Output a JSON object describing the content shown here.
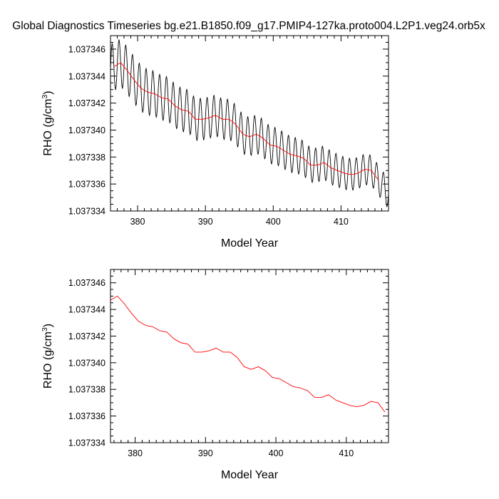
{
  "figure": {
    "title": "Global Diagnostics Timeseries bg.e21.B1850.f09_g17.PMIP4-127ka.proto004.L2P1.veg24.orb5x"
  },
  "chart_data": [
    {
      "type": "line",
      "title": "Global Diagnostics Timeseries bg.e21.B1850.f09_g17.PMIP4-127ka.proto004.L2P1.veg24.orb5x",
      "xlabel": "Model Year",
      "ylabel_main": "RHO (g/cm",
      "ylabel_sup": "3",
      "ylabel_close": ")",
      "xlim": [
        376,
        417
      ],
      "ylim": [
        1.037334,
        1.037347
      ],
      "xticks": [
        380,
        390,
        400,
        410
      ],
      "xtick_labels": [
        "380",
        "390",
        "400",
        "410"
      ],
      "yticks": [
        1.037334,
        1.037336,
        1.037338,
        1.03734,
        1.037342,
        1.037344,
        1.037346
      ],
      "ytick_labels": [
        "1.037334",
        "1.037336",
        "1.037338",
        "1.037340",
        "1.037342",
        "1.037344",
        "1.037346"
      ],
      "grid": false,
      "series": [
        {
          "role": "monthly",
          "color": "#000000",
          "generated": "seasonal cycle: annual mean plus 12-month oscillation",
          "start_year": 376.0,
          "months": 492,
          "amplitude": [
            1.8e-06,
            1.1e-06
          ],
          "phase": 1.5707963
        },
        {
          "role": "annual_mean",
          "color": "#ff0000",
          "x": [
            376.5,
            377.5,
            378.5,
            379.5,
            380.5,
            381.5,
            382.5,
            383.5,
            384.5,
            385.5,
            386.5,
            387.5,
            388.5,
            389.5,
            390.5,
            391.5,
            392.5,
            393.5,
            394.5,
            395.5,
            396.5,
            397.5,
            398.5,
            399.5,
            400.5,
            401.5,
            402.5,
            403.5,
            404.5,
            405.5,
            406.5,
            407.5,
            408.5,
            409.5,
            410.5,
            411.5,
            412.5,
            413.5,
            414.5,
            415.5
          ],
          "y": [
            1.0373447,
            1.037345,
            1.0373444,
            1.0373437,
            1.0373431,
            1.0373428,
            1.0373427,
            1.0373424,
            1.0373423,
            1.0373418,
            1.0373415,
            1.0373414,
            1.0373408,
            1.0373408,
            1.0373409,
            1.0373411,
            1.0373408,
            1.0373408,
            1.0373404,
            1.0373397,
            1.0373395,
            1.0373397,
            1.0373394,
            1.0373389,
            1.0373388,
            1.0373385,
            1.0373382,
            1.0373381,
            1.0373379,
            1.0373374,
            1.0373374,
            1.0373376,
            1.0373372,
            1.037337,
            1.0373368,
            1.0373367,
            1.0373368,
            1.0373371,
            1.037337,
            1.0373363
          ]
        }
      ]
    },
    {
      "type": "line",
      "title": "",
      "xlabel": "Model Year",
      "ylabel_main": "RHO (g/cm",
      "ylabel_sup": "3",
      "ylabel_close": ")",
      "xlim": [
        376.5,
        416
      ],
      "ylim": [
        1.037334,
        1.037347
      ],
      "xticks": [
        380,
        390,
        400,
        410
      ],
      "xtick_labels": [
        "380",
        "390",
        "400",
        "410"
      ],
      "yticks": [
        1.037334,
        1.037336,
        1.037338,
        1.03734,
        1.037342,
        1.037344,
        1.037346
      ],
      "ytick_labels": [
        "1.037334",
        "1.037336",
        "1.037338",
        "1.037340",
        "1.037342",
        "1.037344",
        "1.037346"
      ],
      "grid": false,
      "series": [
        {
          "role": "annual_mean",
          "color": "#ff0000",
          "x": [
            376.5,
            377.5,
            378.5,
            379.5,
            380.5,
            381.5,
            382.5,
            383.5,
            384.5,
            385.5,
            386.5,
            387.5,
            388.5,
            389.5,
            390.5,
            391.5,
            392.5,
            393.5,
            394.5,
            395.5,
            396.5,
            397.5,
            398.5,
            399.5,
            400.5,
            401.5,
            402.5,
            403.5,
            404.5,
            405.5,
            406.5,
            407.5,
            408.5,
            409.5,
            410.5,
            411.5,
            412.5,
            413.5,
            414.5,
            415.5
          ],
          "y": [
            1.0373447,
            1.037345,
            1.0373444,
            1.0373437,
            1.0373431,
            1.0373428,
            1.0373427,
            1.0373424,
            1.0373423,
            1.0373418,
            1.0373415,
            1.0373414,
            1.0373408,
            1.0373408,
            1.0373409,
            1.0373411,
            1.0373408,
            1.0373408,
            1.0373404,
            1.0373397,
            1.0373395,
            1.0373397,
            1.0373394,
            1.0373389,
            1.0373388,
            1.0373385,
            1.0373382,
            1.0373381,
            1.0373379,
            1.0373374,
            1.0373374,
            1.0373376,
            1.0373372,
            1.037337,
            1.0373368,
            1.0373367,
            1.0373368,
            1.0373371,
            1.037337,
            1.0373363
          ]
        }
      ]
    }
  ]
}
